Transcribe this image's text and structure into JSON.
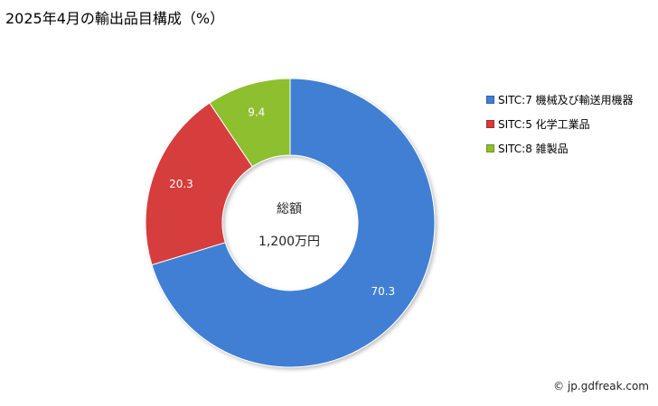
{
  "title": "2025年4月の輸出品目構成（%）",
  "center": {
    "label": "総額",
    "value": "1,200万円"
  },
  "credit": "© jp.gdfreak.com",
  "chart_data": {
    "type": "pie",
    "donut": true,
    "title": "2025年4月の輸出品目構成（%）",
    "legend_position": "right",
    "slices": [
      {
        "label": "SITC:7 機械及び輸送用機器",
        "value": 70.3,
        "value_label": "70.3",
        "color": "#3F7FD4"
      },
      {
        "label": "SITC:5 化学工業品",
        "value": 20.3,
        "value_label": "20.3",
        "color": "#D63C3C"
      },
      {
        "label": "SITC:8 雑製品",
        "value": 9.4,
        "value_label": "9.4",
        "color": "#8DBF2E"
      }
    ]
  }
}
